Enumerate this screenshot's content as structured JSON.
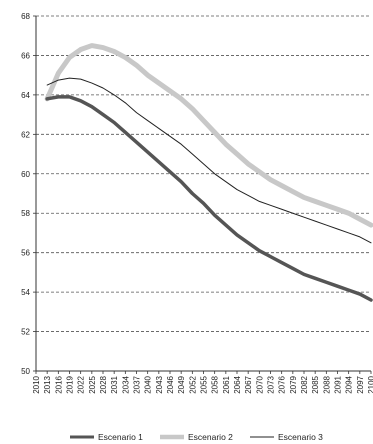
{
  "chart_data": {
    "type": "line",
    "title": "",
    "xlabel": "",
    "ylabel": "",
    "ylim": [
      50,
      68
    ],
    "xlim": [
      2010,
      2100
    ],
    "grid": true,
    "legend_position": "bottom",
    "x_ticks": [
      2010,
      2013,
      2016,
      2019,
      2022,
      2025,
      2028,
      2031,
      2034,
      2037,
      2040,
      2043,
      2046,
      2049,
      2052,
      2055,
      2058,
      2061,
      2064,
      2067,
      2070,
      2073,
      2076,
      2079,
      2082,
      2085,
      2088,
      2091,
      2094,
      2097,
      2100
    ],
    "y_ticks": [
      50,
      52,
      54,
      56,
      58,
      60,
      62,
      64,
      66,
      68
    ],
    "series": [
      {
        "name": "Escenario 1",
        "color": "#555555",
        "points": [
          [
            2013,
            63.8
          ],
          [
            2016,
            63.9
          ],
          [
            2019,
            63.9
          ],
          [
            2022,
            63.7
          ],
          [
            2025,
            63.4
          ],
          [
            2028,
            63.0
          ],
          [
            2031,
            62.6
          ],
          [
            2034,
            62.1
          ],
          [
            2037,
            61.6
          ],
          [
            2040,
            61.1
          ],
          [
            2043,
            60.6
          ],
          [
            2046,
            60.1
          ],
          [
            2049,
            59.6
          ],
          [
            2052,
            59.0
          ],
          [
            2055,
            58.5
          ],
          [
            2058,
            57.9
          ],
          [
            2061,
            57.4
          ],
          [
            2064,
            56.9
          ],
          [
            2067,
            56.5
          ],
          [
            2070,
            56.1
          ],
          [
            2073,
            55.8
          ],
          [
            2076,
            55.5
          ],
          [
            2079,
            55.2
          ],
          [
            2082,
            54.9
          ],
          [
            2085,
            54.7
          ],
          [
            2088,
            54.5
          ],
          [
            2091,
            54.3
          ],
          [
            2094,
            54.1
          ],
          [
            2097,
            53.9
          ],
          [
            2100,
            53.6
          ]
        ]
      },
      {
        "name": "Escenario 2",
        "color": "#c8c8c8",
        "points": [
          [
            2013,
            63.8
          ],
          [
            2016,
            65.1
          ],
          [
            2019,
            65.9
          ],
          [
            2022,
            66.3
          ],
          [
            2025,
            66.5
          ],
          [
            2028,
            66.4
          ],
          [
            2031,
            66.2
          ],
          [
            2034,
            65.9
          ],
          [
            2037,
            65.5
          ],
          [
            2040,
            65.0
          ],
          [
            2043,
            64.6
          ],
          [
            2046,
            64.2
          ],
          [
            2049,
            63.8
          ],
          [
            2052,
            63.3
          ],
          [
            2055,
            62.7
          ],
          [
            2058,
            62.1
          ],
          [
            2061,
            61.5
          ],
          [
            2064,
            61.0
          ],
          [
            2067,
            60.5
          ],
          [
            2070,
            60.1
          ],
          [
            2073,
            59.7
          ],
          [
            2076,
            59.4
          ],
          [
            2079,
            59.1
          ],
          [
            2082,
            58.8
          ],
          [
            2085,
            58.6
          ],
          [
            2088,
            58.4
          ],
          [
            2091,
            58.2
          ],
          [
            2094,
            58.0
          ],
          [
            2097,
            57.7
          ],
          [
            2100,
            57.4
          ]
        ]
      },
      {
        "name": "Escenario 3",
        "color": "#222222",
        "points": [
          [
            2013,
            64.5
          ],
          [
            2016,
            64.75
          ],
          [
            2019,
            64.85
          ],
          [
            2022,
            64.8
          ],
          [
            2025,
            64.6
          ],
          [
            2028,
            64.35
          ],
          [
            2031,
            64.0
          ],
          [
            2034,
            63.6
          ],
          [
            2037,
            63.1
          ],
          [
            2040,
            62.7
          ],
          [
            2043,
            62.3
          ],
          [
            2046,
            61.9
          ],
          [
            2049,
            61.5
          ],
          [
            2052,
            61.0
          ],
          [
            2055,
            60.5
          ],
          [
            2058,
            60.0
          ],
          [
            2061,
            59.6
          ],
          [
            2064,
            59.2
          ],
          [
            2067,
            58.9
          ],
          [
            2070,
            58.6
          ],
          [
            2073,
            58.4
          ],
          [
            2076,
            58.2
          ],
          [
            2079,
            58.0
          ],
          [
            2082,
            57.8
          ],
          [
            2085,
            57.6
          ],
          [
            2088,
            57.4
          ],
          [
            2091,
            57.2
          ],
          [
            2094,
            57.0
          ],
          [
            2097,
            56.8
          ],
          [
            2100,
            56.5
          ]
        ]
      }
    ]
  }
}
